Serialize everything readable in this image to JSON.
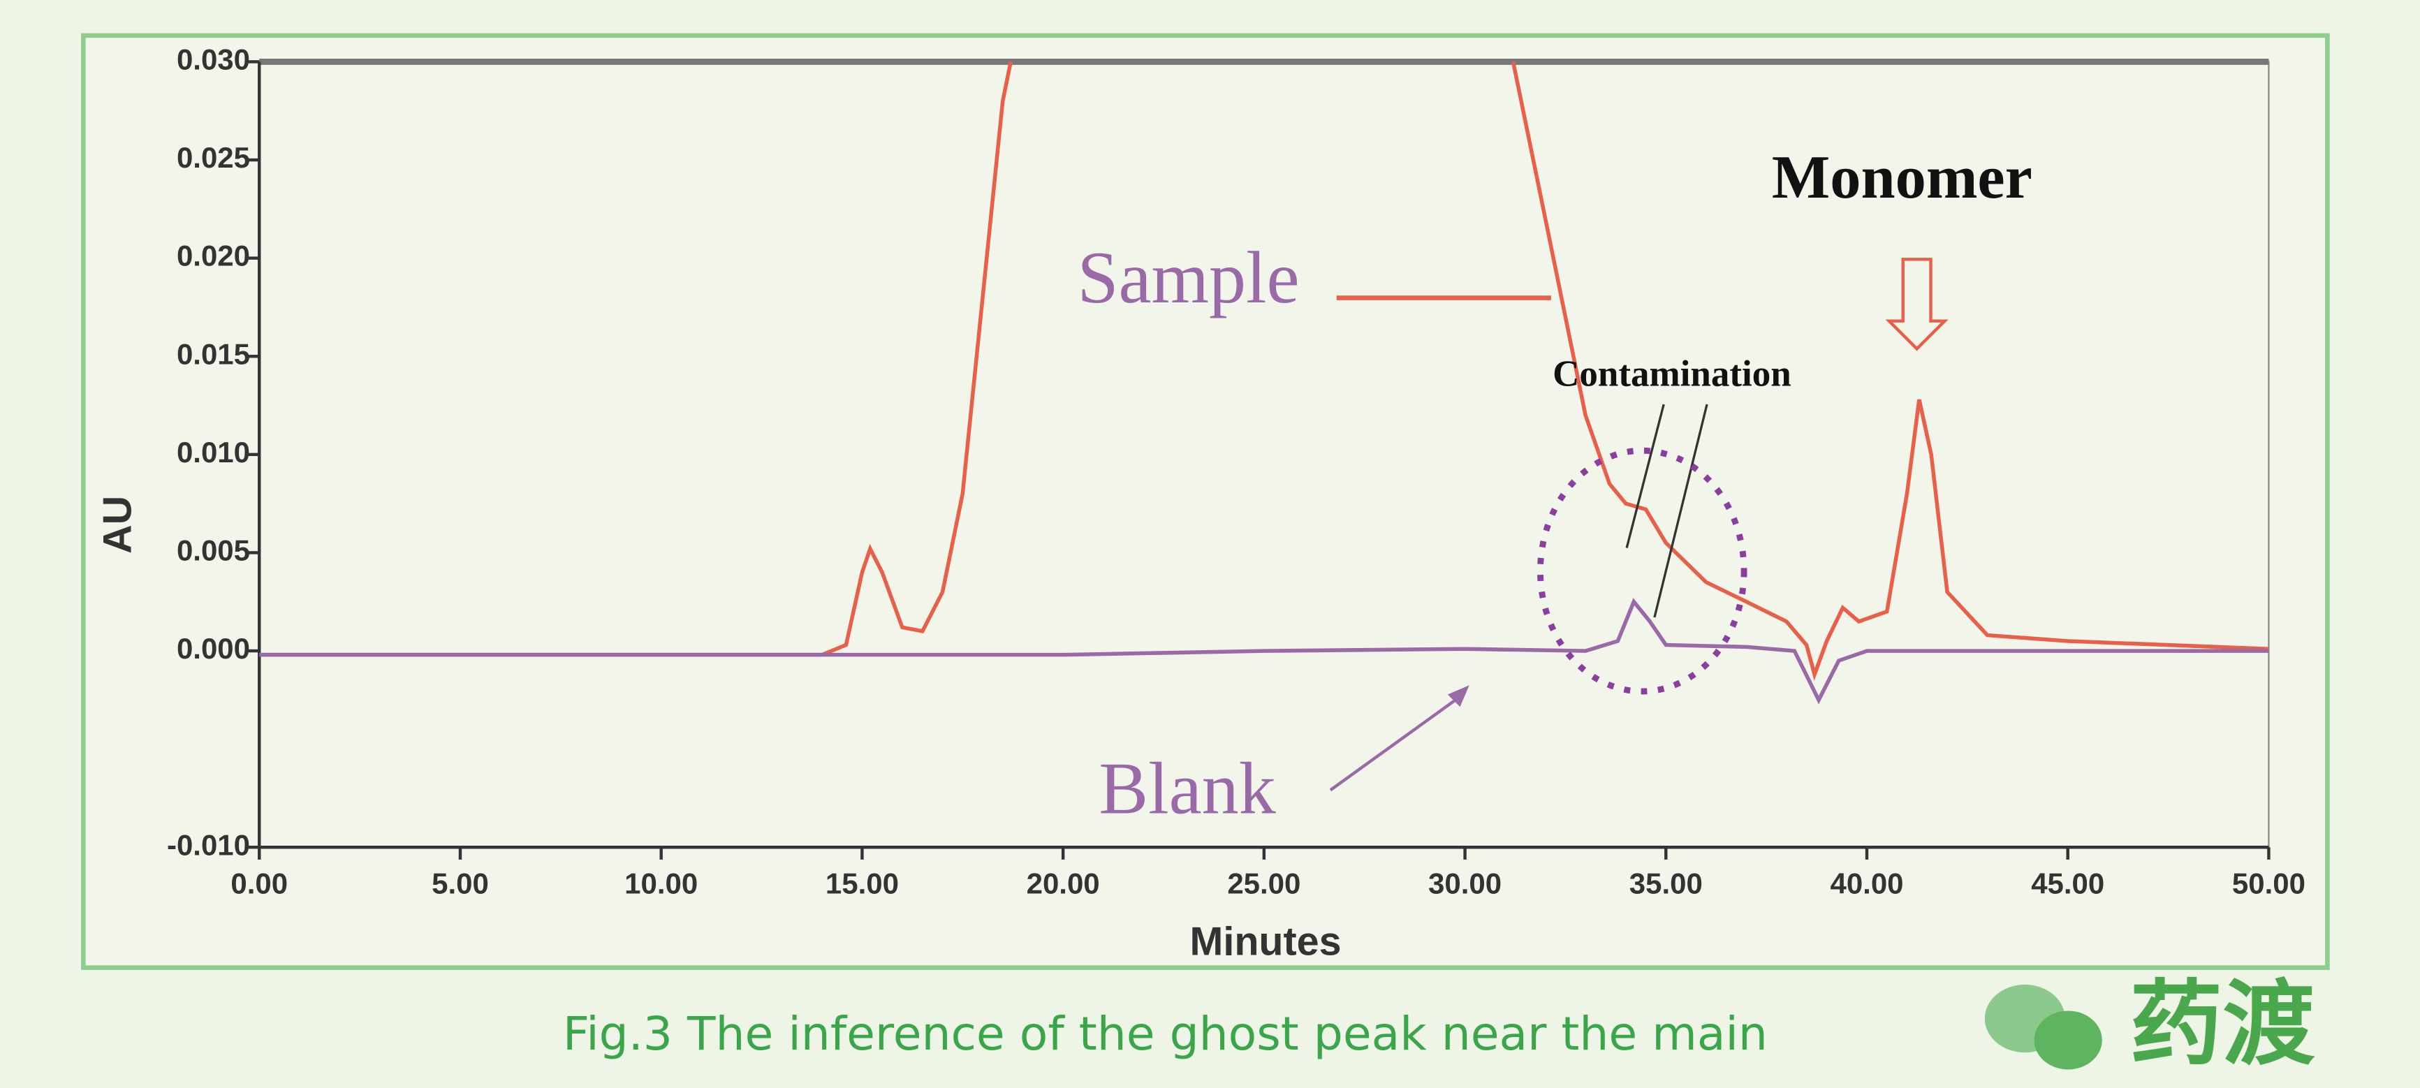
{
  "chart_data": {
    "type": "line",
    "xlabel": "Minutes",
    "ylabel": "AU",
    "caption": "Fig.3 The inference of the ghost peak near the main",
    "logo": "药渡",
    "annotations": [
      "Sample",
      "Blank",
      "Monomer",
      "Contamination"
    ],
    "xlim": [
      0,
      50
    ],
    "ylim": [
      -0.01,
      0.03
    ],
    "xticks": [
      {
        "value": 0,
        "label": "0.00"
      },
      {
        "value": 5,
        "label": "5.00"
      },
      {
        "value": 10,
        "label": "10.00"
      },
      {
        "value": 15,
        "label": "15.00"
      },
      {
        "value": 20,
        "label": "20.00"
      },
      {
        "value": 25,
        "label": "25.00"
      },
      {
        "value": 30,
        "label": "30.00"
      },
      {
        "value": 35,
        "label": "35.00"
      },
      {
        "value": 40,
        "label": "40.00"
      },
      {
        "value": 45,
        "label": "45.00"
      },
      {
        "value": 50,
        "label": "50.00"
      }
    ],
    "yticks": [
      {
        "value": -0.01,
        "label": "-0.010"
      },
      {
        "value": 0,
        "label": "0.000"
      },
      {
        "value": 0.005,
        "label": "0.005"
      },
      {
        "value": 0.01,
        "label": "0.010"
      },
      {
        "value": 0.015,
        "label": "0.015"
      },
      {
        "value": 0.02,
        "label": "0.020"
      },
      {
        "value": 0.025,
        "label": "0.025"
      },
      {
        "value": 0.03,
        "label": "0.030"
      }
    ],
    "series": [
      {
        "name": "Sample",
        "color": "#e8604a",
        "x": [
          0,
          14,
          14.6,
          15,
          15.2,
          15.5,
          16,
          16.5,
          17,
          17.5,
          18,
          18.5,
          18.7,
          25,
          31.2,
          32,
          33,
          33.6,
          34,
          34.5,
          35,
          36,
          37,
          38,
          38.5,
          38.7,
          39,
          39.4,
          39.8,
          40.5,
          41,
          41.3,
          41.6,
          42,
          43,
          45,
          50
        ],
        "values": [
          -0.0002,
          -0.0002,
          0.0003,
          0.004,
          0.0052,
          0.004,
          0.0012,
          0.001,
          0.003,
          0.008,
          0.018,
          0.028,
          0.03,
          null,
          0.03,
          0.022,
          0.012,
          0.0085,
          0.0075,
          0.0072,
          0.0055,
          0.0035,
          0.0025,
          0.0015,
          0.0003,
          -0.0012,
          0.0005,
          0.0022,
          0.0015,
          0.002,
          0.008,
          0.0128,
          0.01,
          0.003,
          0.0008,
          0.0005,
          0.0001
        ]
      },
      {
        "name": "Blank",
        "color": "#9a6aa8",
        "x": [
          0,
          14,
          20,
          25,
          30,
          33,
          33.8,
          34.2,
          34.6,
          35,
          37,
          38.2,
          38.8,
          39.3,
          40,
          45,
          50
        ],
        "values": [
          -0.0002,
          -0.0002,
          -0.0002,
          0,
          0.0001,
          0,
          0.0005,
          0.0025,
          0.0015,
          0.0003,
          0.0002,
          0,
          -0.0025,
          -0.0005,
          0,
          0,
          0
        ]
      }
    ]
  }
}
